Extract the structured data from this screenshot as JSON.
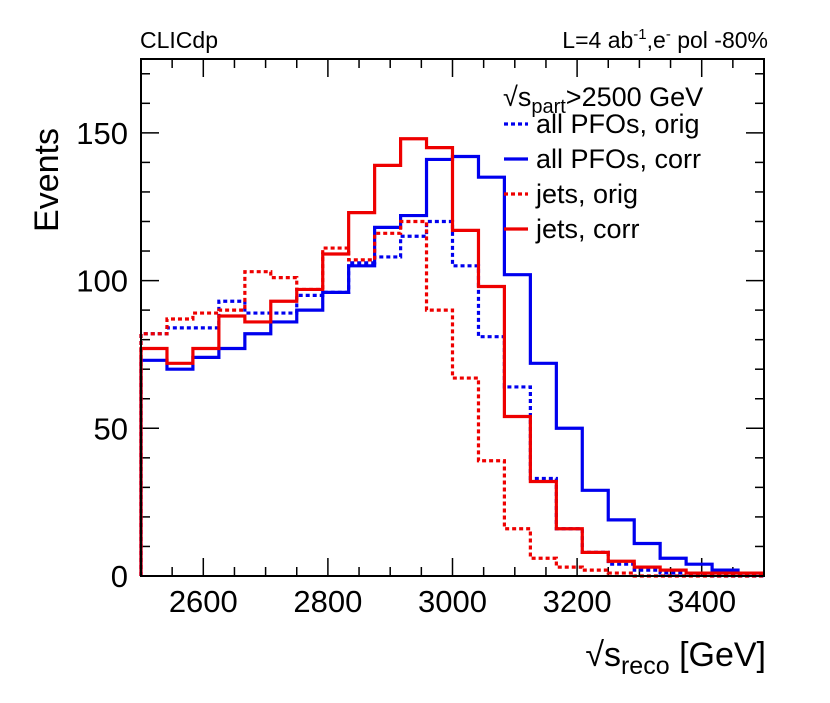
{
  "chart_data": {
    "type": "histogram",
    "header_left": "CLICdp",
    "header_right": {
      "lumi_label": "L=4 ab",
      "lumi_exp": "-1",
      "sep": ",e",
      "pol_sup": "-",
      "pol_label": " pol -80%"
    },
    "xlabel": {
      "pre": "√s",
      "sub": "reco",
      "post": " [GeV]"
    },
    "ylabel": "Events",
    "xlim": [
      2500,
      3500
    ],
    "ylim": [
      0,
      175
    ],
    "xticks": [
      2600,
      2800,
      3000,
      3200,
      3400
    ],
    "yticks": [
      0,
      50,
      100,
      150
    ],
    "bin_edges": [
      2500,
      2541.7,
      2583.3,
      2625,
      2666.7,
      2708.3,
      2750,
      2791.7,
      2833.3,
      2875,
      2916.7,
      2958.3,
      3000,
      3041.7,
      3083.3,
      3125,
      3166.7,
      3208.3,
      3250,
      3291.7,
      3333.3,
      3375,
      3416.7,
      3458.3,
      3500
    ],
    "legend": {
      "cut": {
        "pre": "√s",
        "sub": "part",
        "post": ">2500 GeV"
      }
    },
    "series": [
      {
        "name": "all PFOs, orig",
        "color": "#0000ee",
        "style": "dotted",
        "values": [
          82,
          84,
          84,
          93,
          89,
          89,
          95,
          96,
          106,
          108,
          115,
          120,
          105,
          81,
          64,
          33,
          16,
          8,
          4,
          2,
          1,
          1,
          0,
          0
        ]
      },
      {
        "name": "all PFOs, corr",
        "color": "#0000ee",
        "style": "solid",
        "values": [
          73,
          70,
          74,
          77,
          82,
          86,
          90,
          96,
          105,
          118,
          122,
          141,
          142,
          135,
          102,
          72,
          50,
          29,
          19,
          11,
          6,
          4,
          2,
          1
        ]
      },
      {
        "name": "jets, orig",
        "color": "#ee0000",
        "style": "dotted",
        "values": [
          82,
          87,
          89,
          90,
          103,
          101,
          97,
          111,
          107,
          116,
          120,
          90,
          67,
          39,
          16,
          6,
          3,
          2,
          1,
          0,
          0,
          0,
          0,
          0
        ]
      },
      {
        "name": "jets, corr",
        "color": "#ee0000",
        "style": "solid",
        "values": [
          77,
          72,
          77,
          88,
          86,
          93,
          97,
          109,
          123,
          139,
          148,
          145,
          117,
          98,
          54,
          32,
          16,
          8,
          5,
          3,
          2,
          1,
          1,
          1
        ]
      }
    ]
  }
}
